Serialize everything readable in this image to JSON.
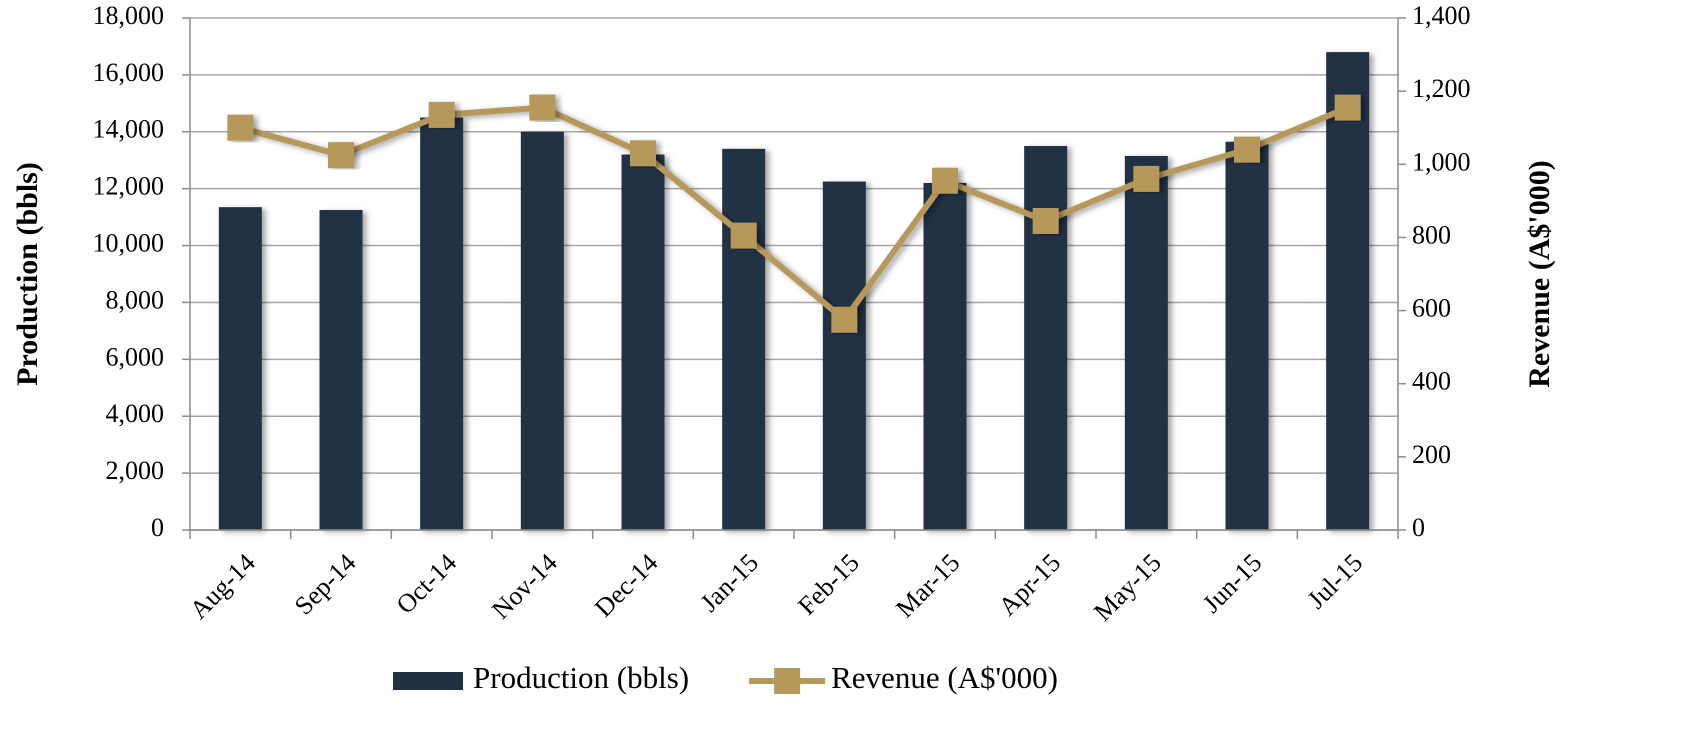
{
  "chart_data": {
    "type": "bar",
    "categories": [
      "Aug-14",
      "Sep-14",
      "Oct-14",
      "Nov-14",
      "Dec-14",
      "Jan-15",
      "Feb-15",
      "Mar-15",
      "Apr-15",
      "May-15",
      "Jun-15",
      "Jul-15"
    ],
    "series": [
      {
        "name": "Production (bbls)",
        "type": "bar",
        "color": "#223044",
        "values": [
          11350,
          11250,
          14500,
          14000,
          13200,
          13400,
          12250,
          12200,
          13500,
          13150,
          13650,
          16800
        ]
      },
      {
        "name": "Revenue (A$'000)",
        "type": "line",
        "axis": "y2",
        "color": "#b5985a",
        "values": [
          1100,
          1025,
          1135,
          1155,
          1030,
          805,
          575,
          955,
          845,
          960,
          1040,
          1155
        ]
      }
    ],
    "ylabel": "Production (bbls)",
    "y2label": "Revenue (A$'000)",
    "ylim": [
      0,
      18000
    ],
    "yticks": [
      0,
      {
        "value": 2000,
        "label": "2,000"
      },
      {
        "value": 4000,
        "label": "4,000"
      },
      {
        "value": 6000,
        "label": "6,000"
      },
      {
        "value": 8000,
        "label": "8,000"
      },
      {
        "value": 10000,
        "label": "10,000"
      },
      {
        "value": 12000,
        "label": "12,000"
      },
      {
        "value": 14000,
        "label": "14,000"
      },
      {
        "value": 16000,
        "label": "16,000"
      },
      {
        "value": 18000,
        "label": "18,000"
      }
    ],
    "y2lim": [
      0,
      1400
    ],
    "y2ticks": [
      0,
      200,
      400,
      600,
      800,
      {
        "value": 1000,
        "label": "1,000"
      },
      {
        "value": 1200,
        "label": "1,200"
      },
      {
        "value": 1400,
        "label": "1,400"
      }
    ],
    "grid": true,
    "legend": "bottom"
  }
}
